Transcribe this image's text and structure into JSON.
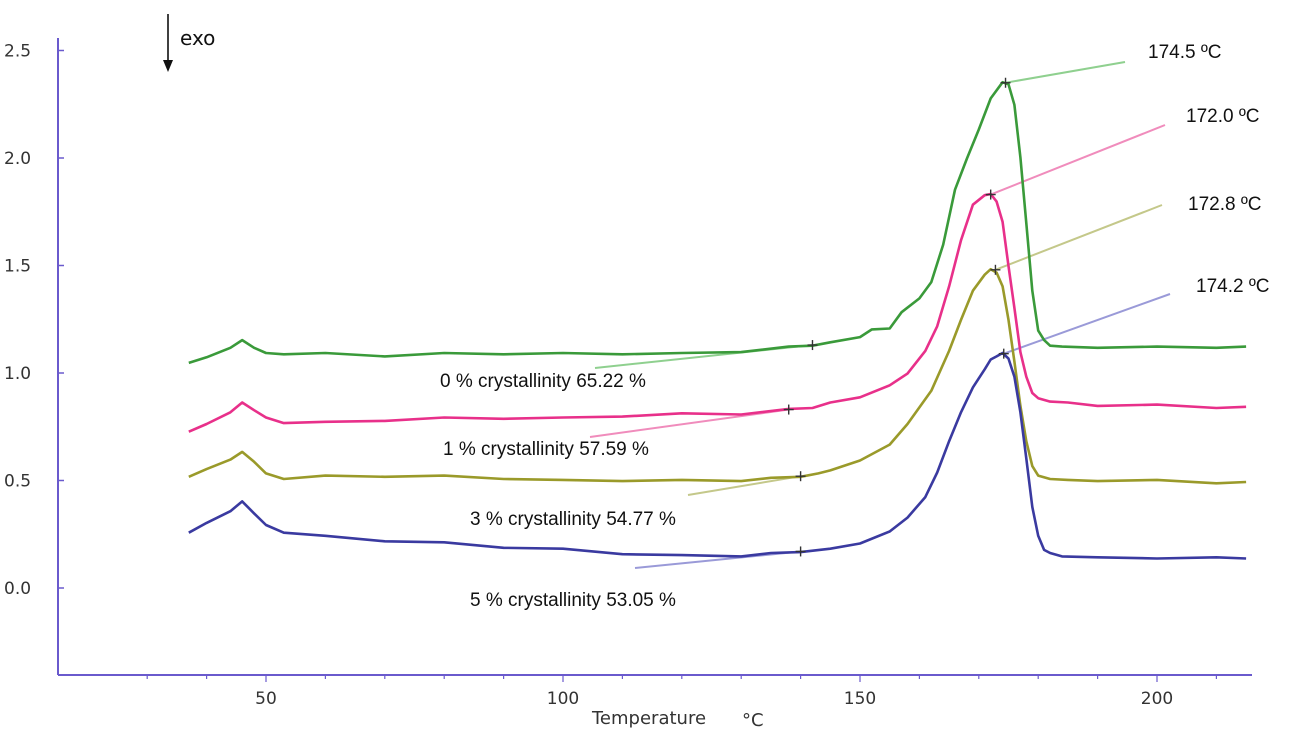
{
  "chart_data": {
    "type": "line",
    "title": "",
    "xlabel": "Temperature",
    "xunit": "°C",
    "ylabel": "",
    "xlim": [
      20,
      215
    ],
    "ylim": [
      -0.4,
      2.55
    ],
    "xticks": [
      50,
      100,
      150,
      200
    ],
    "yticks": [
      0.0,
      0.5,
      1.0,
      1.5,
      2.0,
      2.5
    ],
    "ytick_labels": [
      "0.0",
      "0.5",
      "1.0",
      "1.5",
      "2.0",
      "2.5"
    ],
    "grid": false,
    "direction_label": "exo",
    "series": [
      {
        "color": "#3a9a3a",
        "x": [
          37,
          40,
          44,
          46,
          48,
          50,
          53,
          60,
          70,
          80,
          90,
          100,
          110,
          120,
          130,
          138,
          142,
          145,
          150,
          152,
          155,
          157,
          160,
          162,
          164,
          166,
          168,
          170,
          172,
          174,
          174.5,
          175,
          176,
          177,
          178,
          179,
          180,
          181,
          182,
          184,
          190,
          200,
          210,
          215
        ],
        "y": [
          1.05,
          1.07,
          1.12,
          1.15,
          1.12,
          1.09,
          1.09,
          1.09,
          1.08,
          1.09,
          1.09,
          1.09,
          1.09,
          1.09,
          1.1,
          1.12,
          1.13,
          1.14,
          1.17,
          1.2,
          1.21,
          1.28,
          1.35,
          1.42,
          1.6,
          1.85,
          2.0,
          2.13,
          2.28,
          2.35,
          2.35,
          2.34,
          2.25,
          2.0,
          1.7,
          1.38,
          1.2,
          1.15,
          1.13,
          1.12,
          1.12,
          1.12,
          1.12,
          1.12
        ]
      },
      {
        "color": "#e8308a",
        "x": [
          37,
          40,
          44,
          46,
          48,
          50,
          53,
          60,
          70,
          80,
          90,
          100,
          110,
          120,
          130,
          138,
          142,
          145,
          150,
          155,
          158,
          161,
          163,
          165,
          167,
          169,
          171,
          172,
          173,
          174,
          175,
          176,
          177,
          178,
          179,
          180,
          182,
          185,
          190,
          200,
          210,
          215
        ],
        "y": [
          0.73,
          0.76,
          0.82,
          0.86,
          0.83,
          0.79,
          0.77,
          0.77,
          0.78,
          0.79,
          0.79,
          0.79,
          0.8,
          0.81,
          0.81,
          0.83,
          0.84,
          0.86,
          0.89,
          0.94,
          1.0,
          1.1,
          1.22,
          1.4,
          1.62,
          1.78,
          1.83,
          1.83,
          1.8,
          1.7,
          1.5,
          1.3,
          1.1,
          0.98,
          0.91,
          0.88,
          0.87,
          0.86,
          0.85,
          0.85,
          0.84,
          0.84
        ]
      },
      {
        "color": "#9a9a2a",
        "x": [
          37,
          40,
          44,
          46,
          48,
          50,
          53,
          60,
          70,
          80,
          90,
          100,
          110,
          120,
          130,
          135,
          140,
          143,
          145,
          150,
          155,
          158,
          162,
          165,
          167,
          169,
          171,
          172,
          173,
          174,
          175,
          176,
          177,
          178,
          179,
          180,
          182,
          185,
          190,
          200,
          210,
          215
        ],
        "y": [
          0.52,
          0.55,
          0.6,
          0.63,
          0.59,
          0.53,
          0.51,
          0.52,
          0.52,
          0.52,
          0.51,
          0.5,
          0.5,
          0.5,
          0.5,
          0.51,
          0.52,
          0.53,
          0.55,
          0.59,
          0.67,
          0.76,
          0.92,
          1.1,
          1.25,
          1.38,
          1.46,
          1.48,
          1.47,
          1.4,
          1.25,
          1.05,
          0.85,
          0.68,
          0.57,
          0.52,
          0.51,
          0.5,
          0.5,
          0.5,
          0.49,
          0.49
        ]
      },
      {
        "color": "#3a3aa0",
        "x": [
          37,
          40,
          44,
          46,
          48,
          50,
          53,
          60,
          70,
          80,
          90,
          100,
          110,
          120,
          130,
          135,
          140,
          145,
          150,
          155,
          158,
          161,
          163,
          165,
          167,
          169,
          171,
          172,
          173,
          174,
          175,
          176,
          177,
          178,
          179,
          180,
          181,
          182,
          184,
          190,
          200,
          210,
          215
        ],
        "y": [
          0.26,
          0.3,
          0.36,
          0.4,
          0.35,
          0.29,
          0.26,
          0.24,
          0.22,
          0.21,
          0.19,
          0.18,
          0.16,
          0.15,
          0.15,
          0.16,
          0.17,
          0.18,
          0.21,
          0.26,
          0.33,
          0.42,
          0.54,
          0.68,
          0.82,
          0.93,
          1.02,
          1.06,
          1.08,
          1.09,
          1.07,
          0.98,
          0.82,
          0.6,
          0.38,
          0.24,
          0.18,
          0.16,
          0.15,
          0.14,
          0.14,
          0.14,
          0.14
        ]
      }
    ],
    "peak_labels": [
      {
        "text": "174.5 ºC",
        "color": "#8fd08f",
        "x": 174.5,
        "y": 2.35
      },
      {
        "text": "172.0 ºC",
        "color": "#f08cbc",
        "x": 172.0,
        "y": 1.83
      },
      {
        "text": "172.8 ºC",
        "color": "#c4c88a",
        "x": 172.8,
        "y": 1.48
      },
      {
        "text": "174.2 ºC",
        "color": "#9a9ad8",
        "x": 174.2,
        "y": 1.09
      }
    ],
    "onset_markers": [
      {
        "x": 142,
        "y": 1.13
      },
      {
        "x": 138,
        "y": 0.83
      },
      {
        "x": 140,
        "y": 0.52
      },
      {
        "x": 140,
        "y": 0.17
      }
    ],
    "crystallinity_labels": [
      {
        "text": "0 % crystallinity 65.22 %",
        "color": "#8fd08f"
      },
      {
        "text": "1 % crystallinity 57.59 %",
        "color": "#f08cbc"
      },
      {
        "text": "3 % crystallinity 54.77 %",
        "color": "#c4c88a"
      },
      {
        "text": "5 % crystallinity 53.05 %",
        "color": "#9a9ad8"
      }
    ]
  }
}
